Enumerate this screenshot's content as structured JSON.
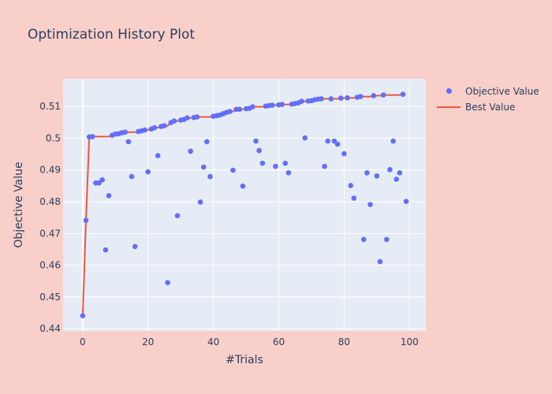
{
  "title": "Optimization History Plot",
  "legend": {
    "items": [
      {
        "label": "Objective Value",
        "type": "marker",
        "color": "#636efa"
      },
      {
        "label": "Best Value",
        "type": "line",
        "color": "#ef553b"
      }
    ]
  },
  "colors": {
    "paper_bg": "#f8cfc9",
    "plot_bg": "#e5ecf6",
    "grid": "#ffffff",
    "marker": "#636efa",
    "line": "#ef553b",
    "text": "#2a3f5f"
  },
  "chart_data": {
    "type": "scatter",
    "title": "Optimization History Plot",
    "xlabel": "#Trials",
    "ylabel": "Objective Value",
    "xlim": [
      -6,
      105
    ],
    "ylim": [
      0.4393,
      0.5187
    ],
    "xticks": [
      0,
      20,
      40,
      60,
      80,
      100
    ],
    "yticks": [
      0.44,
      0.45,
      0.46,
      0.47,
      0.48,
      0.49,
      0.5,
      0.51
    ],
    "ytick_labels": [
      "0.44",
      "0.45",
      "0.46",
      "0.47",
      "0.48",
      "0.49",
      "0.5",
      "0.51"
    ],
    "grid": true,
    "legend_position": "right-top",
    "series": [
      {
        "name": "Objective Value",
        "mode": "markers",
        "x": [
          0,
          1,
          2,
          3,
          4,
          5,
          6,
          7,
          8,
          9,
          10,
          11,
          12,
          13,
          14,
          15,
          16,
          17,
          18,
          19,
          20,
          21,
          22,
          23,
          24,
          25,
          26,
          27,
          28,
          29,
          30,
          31,
          32,
          33,
          34,
          35,
          36,
          37,
          38,
          39,
          40,
          41,
          42,
          43,
          44,
          45,
          46,
          47,
          48,
          49,
          50,
          51,
          52,
          53,
          54,
          55,
          56,
          57,
          58,
          59,
          60,
          61,
          62,
          63,
          64,
          65,
          66,
          67,
          68,
          69,
          70,
          71,
          72,
          73,
          74,
          75,
          76,
          77,
          78,
          79,
          80,
          81,
          82,
          83,
          84,
          85,
          86,
          87,
          88,
          89,
          90,
          91,
          92,
          93,
          94,
          95,
          96,
          97,
          98,
          99
        ],
        "y": [
          0.4441,
          0.4741,
          0.5004,
          0.5005,
          0.4859,
          0.4859,
          0.4869,
          0.4648,
          0.4819,
          0.5009,
          0.5013,
          0.5014,
          0.5017,
          0.5019,
          0.4989,
          0.4879,
          0.4659,
          0.5021,
          0.5023,
          0.5026,
          0.4894,
          0.5029,
          0.5033,
          0.4945,
          0.5037,
          0.5039,
          0.4545,
          0.5049,
          0.5054,
          0.4756,
          0.5057,
          0.5059,
          0.5064,
          0.4959,
          0.5065,
          0.5067,
          0.4799,
          0.4909,
          0.4989,
          0.4879,
          0.5069,
          0.5071,
          0.5073,
          0.5077,
          0.5081,
          0.5084,
          0.4899,
          0.5091,
          0.5091,
          0.4849,
          0.5093,
          0.5094,
          0.5099,
          0.4991,
          0.4961,
          0.4921,
          0.5101,
          0.5103,
          0.5104,
          0.4911,
          0.5105,
          0.5106,
          0.4921,
          0.4891,
          0.5107,
          0.5109,
          0.5111,
          0.5116,
          0.5001,
          0.5117,
          0.5118,
          0.5121,
          0.5123,
          0.5124,
          0.4911,
          0.4991,
          0.5124,
          0.4991,
          0.4981,
          0.5126,
          0.4951,
          0.5127,
          0.4851,
          0.4811,
          0.5129,
          0.5131,
          0.4681,
          0.4891,
          0.4791,
          0.5134,
          0.4881,
          0.4611,
          0.5136,
          0.4681,
          0.4901,
          0.4991,
          0.4871,
          0.4891,
          0.5138,
          0.4801
        ]
      },
      {
        "name": "Best Value",
        "mode": "lines",
        "x": [
          0,
          1,
          2,
          3,
          4,
          5,
          6,
          7,
          8,
          9,
          10,
          11,
          12,
          13,
          14,
          15,
          16,
          17,
          18,
          19,
          20,
          21,
          22,
          23,
          24,
          25,
          26,
          27,
          28,
          29,
          30,
          31,
          32,
          33,
          34,
          35,
          36,
          37,
          38,
          39,
          40,
          41,
          42,
          43,
          44,
          45,
          46,
          47,
          48,
          49,
          50,
          51,
          52,
          53,
          54,
          55,
          56,
          57,
          58,
          59,
          60,
          61,
          62,
          63,
          64,
          65,
          66,
          67,
          68,
          69,
          70,
          71,
          72,
          73,
          74,
          75,
          76,
          77,
          78,
          79,
          80,
          81,
          82,
          83,
          84,
          85,
          86,
          87,
          88,
          89,
          90,
          91,
          92,
          93,
          94,
          95,
          96,
          97,
          98
        ],
        "y": [
          0.4441,
          0.4741,
          0.5004,
          0.5005,
          0.5005,
          0.5005,
          0.5005,
          0.5005,
          0.5005,
          0.5009,
          0.5013,
          0.5014,
          0.5017,
          0.5019,
          0.5019,
          0.5019,
          0.5019,
          0.5021,
          0.5023,
          0.5026,
          0.5026,
          0.5029,
          0.5033,
          0.5033,
          0.5037,
          0.5039,
          0.5039,
          0.5049,
          0.5054,
          0.5054,
          0.5057,
          0.5059,
          0.5064,
          0.5064,
          0.5065,
          0.5067,
          0.5067,
          0.5067,
          0.5067,
          0.5067,
          0.5069,
          0.5071,
          0.5073,
          0.5077,
          0.5081,
          0.5084,
          0.5084,
          0.5091,
          0.5091,
          0.5091,
          0.5093,
          0.5094,
          0.5099,
          0.5099,
          0.5099,
          0.5099,
          0.5101,
          0.5103,
          0.5104,
          0.5104,
          0.5105,
          0.5106,
          0.5106,
          0.5106,
          0.5107,
          0.5109,
          0.5111,
          0.5116,
          0.5116,
          0.5117,
          0.5118,
          0.5121,
          0.5123,
          0.5124,
          0.5124,
          0.5124,
          0.5124,
          0.5124,
          0.5124,
          0.5126,
          0.5126,
          0.5127,
          0.5127,
          0.5127,
          0.5129,
          0.5131,
          0.5131,
          0.5131,
          0.5131,
          0.5134,
          0.5134,
          0.5134,
          0.5136,
          0.5136,
          0.5136,
          0.5136,
          0.5136,
          0.5136,
          0.5138
        ]
      }
    ]
  }
}
